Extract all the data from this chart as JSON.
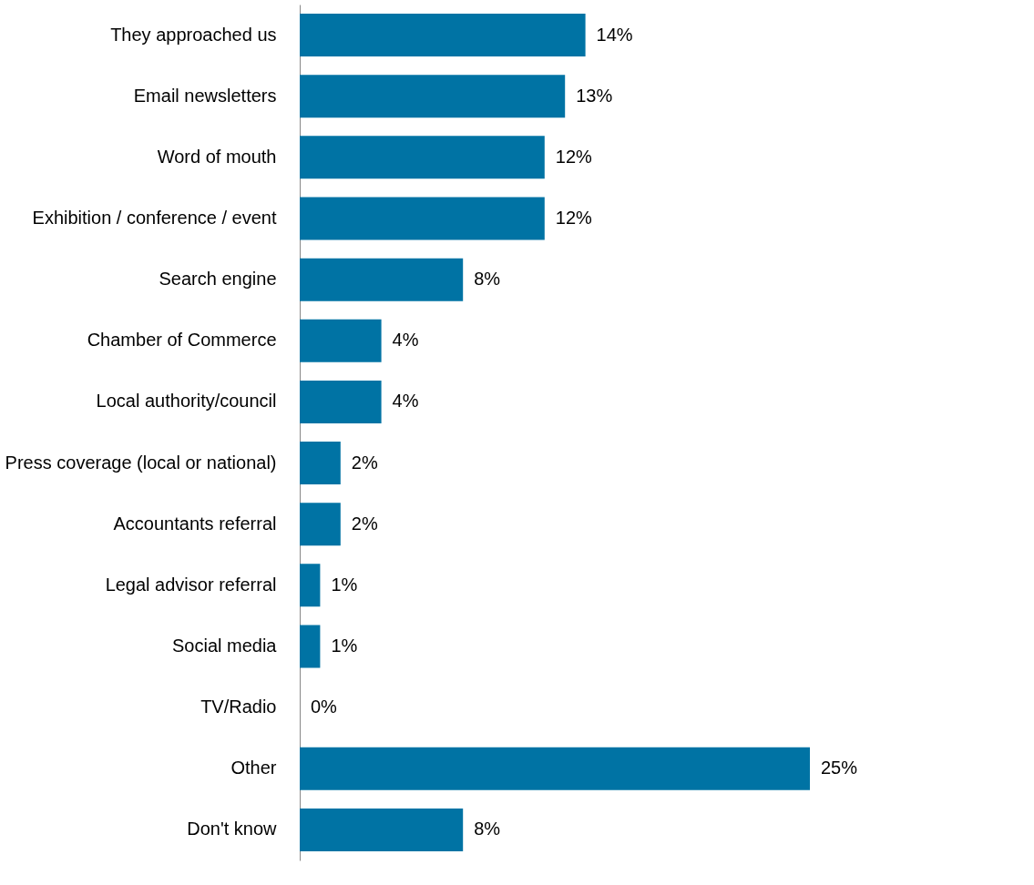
{
  "chart_data": {
    "type": "bar",
    "orientation": "horizontal",
    "categories": [
      "They approached us",
      "Email newsletters",
      "Word of mouth",
      "Exhibition / conference / event",
      "Search engine",
      "Chamber of Commerce",
      "Local authority/council",
      "Press coverage (local or national)",
      "Accountants referral",
      "Legal advisor referral",
      "Social media",
      "TV/Radio",
      "Other",
      "Don't know"
    ],
    "values": [
      14,
      13,
      12,
      12,
      8,
      4,
      4,
      2,
      2,
      1,
      1,
      0,
      25,
      8
    ],
    "value_labels": [
      "14%",
      "13%",
      "12%",
      "12%",
      "8%",
      "4%",
      "4%",
      "2%",
      "2%",
      "1%",
      "1%",
      "0%",
      "25%",
      "8%"
    ],
    "color": "#0073a4",
    "grid": false
  }
}
